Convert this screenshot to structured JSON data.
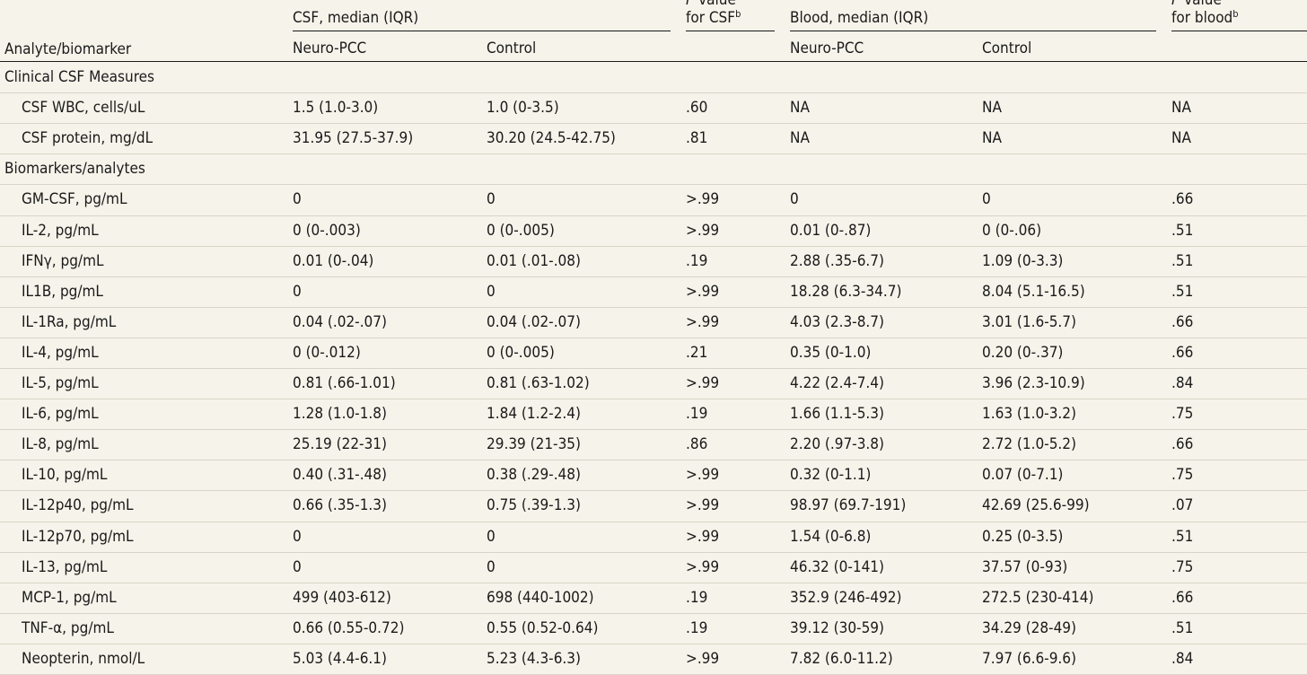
{
  "header": {
    "analyte_label": "Analyte/biomarker",
    "csf_group": "CSF, median (IQR)",
    "blood_group": "Blood, median (IQR)",
    "neuro_pcc": "Neuro-PCC",
    "control": "Control",
    "p_csf_line1": "P value",
    "p_csf_line2": "for CSF",
    "p_csf_sup": "b",
    "p_blood_line1": "P value",
    "p_blood_line2": "for blood",
    "p_blood_sup": "b"
  },
  "sections": [
    {
      "title": "Clinical CSF Measures",
      "rows": [
        [
          "CSF WBC, cells/uL",
          "1.5 (1.0-3.0)",
          "1.0 (0-3.5)",
          ".60",
          "NA",
          "NA",
          "NA"
        ],
        [
          "CSF protein, mg/dL",
          "31.95 (27.5-37.9)",
          "30.20 (24.5-42.75)",
          ".81",
          "NA",
          "NA",
          "NA"
        ]
      ]
    },
    {
      "title": "Biomarkers/analytes",
      "rows": [
        [
          "GM-CSF, pg/mL",
          "0",
          "0",
          ">.99",
          "0",
          "0",
          ".66"
        ],
        [
          "IL-2, pg/mL",
          "0 (0-.003)",
          "0 (0-.005)",
          ">.99",
          "0.01 (0-.87)",
          "0 (0-.06)",
          ".51"
        ],
        [
          "IFNγ, pg/mL",
          "0.01 (0-.04)",
          "0.01 (.01-.08)",
          ".19",
          "2.88 (.35-6.7)",
          "1.09 (0-3.3)",
          ".51"
        ],
        [
          "IL1B, pg/mL",
          "0",
          "0",
          ">.99",
          "18.28 (6.3-34.7)",
          "8.04 (5.1-16.5)",
          ".51"
        ],
        [
          "IL-1Ra, pg/mL",
          "0.04 (.02-.07)",
          "0.04 (.02-.07)",
          ">.99",
          "4.03 (2.3-8.7)",
          "3.01 (1.6-5.7)",
          ".66"
        ],
        [
          "IL-4, pg/mL",
          "0 (0-.012)",
          "0 (0-.005)",
          ".21",
          "0.35 (0-1.0)",
          "0.20 (0-.37)",
          ".66"
        ],
        [
          "IL-5, pg/mL",
          "0.81 (.66-1.01)",
          "0.81 (.63-1.02)",
          ">.99",
          "4.22 (2.4-7.4)",
          "3.96 (2.3-10.9)",
          ".84"
        ],
        [
          "IL-6, pg/mL",
          "1.28 (1.0-1.8)",
          "1.84 (1.2-2.4)",
          ".19",
          "1.66 (1.1-5.3)",
          "1.63 (1.0-3.2)",
          ".75"
        ],
        [
          "IL-8, pg/mL",
          "25.19 (22-31)",
          "29.39 (21-35)",
          ".86",
          "2.20 (.97-3.8)",
          "2.72 (1.0-5.2)",
          ".66"
        ],
        [
          "IL-10, pg/mL",
          "0.40 (.31-.48)",
          "0.38 (.29-.48)",
          ">.99",
          "0.32 (0-1.1)",
          "0.07 (0-7.1)",
          ".75"
        ],
        [
          "IL-12p40, pg/mL",
          "0.66 (.35-1.3)",
          "0.75 (.39-1.3)",
          ">.99",
          "98.97 (69.7-191)",
          "42.69 (25.6-99)",
          ".07"
        ],
        [
          "IL-12p70, pg/mL",
          "0",
          "0",
          ">.99",
          "1.54 (0-6.8)",
          "0.25 (0-3.5)",
          ".51"
        ],
        [
          "IL-13, pg/mL",
          "0",
          "0",
          ">.99",
          "46.32 (0-141)",
          "37.57 (0-93)",
          ".75"
        ],
        [
          "MCP-1, pg/mL",
          "499 (403-612)",
          "698 (440-1002)",
          ".19",
          "352.9 (246-492)",
          "272.5 (230-414)",
          ".66"
        ],
        [
          "TNF-α, pg/mL",
          "0.66 (0.55-0.72)",
          "0.55 (0.52-0.64)",
          ".19",
          "39.12 (30-59)",
          "34.29 (28-49)",
          ".51"
        ],
        [
          "Neopterin, nmol/L",
          "5.03 (4.4-6.1)",
          "5.23 (4.3-6.3)",
          ">.99",
          "7.82 (6.0-11.2)",
          "7.97 (6.6-9.6)",
          ".84"
        ]
      ]
    }
  ]
}
